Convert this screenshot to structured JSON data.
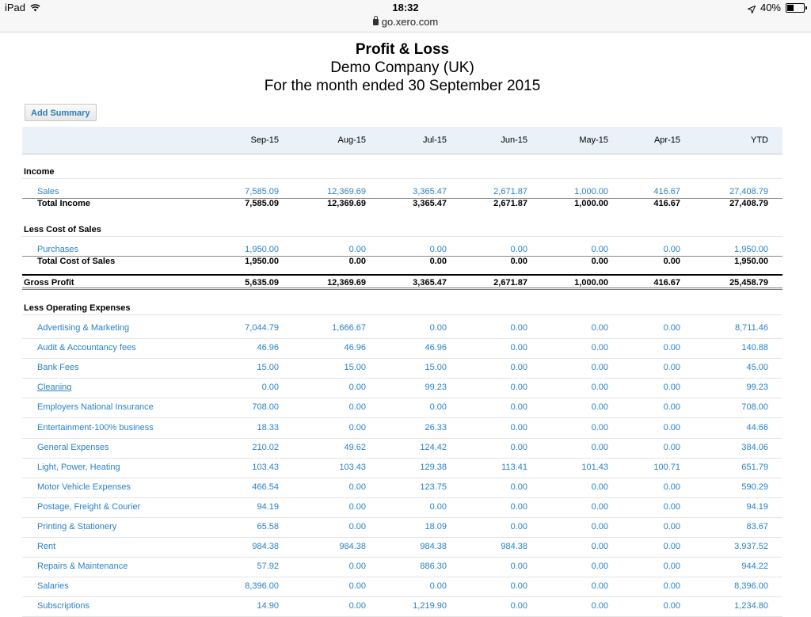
{
  "status_bar": {
    "device": "iPad",
    "time": "18:32",
    "url": "go.xero.com",
    "battery": "40%",
    "battery_level": 0.4
  },
  "report": {
    "title": "Profit & Loss",
    "company": "Demo Company (UK)",
    "period": "For the month ended 30 September 2015",
    "add_summary_label": "Add Summary"
  },
  "columns": [
    "Sep-15",
    "Aug-15",
    "Jul-15",
    "Jun-15",
    "May-15",
    "Apr-15",
    "YTD"
  ],
  "income": {
    "heading": "Income",
    "rows": [
      {
        "label": "Sales",
        "values": [
          "7,585.09",
          "12,369.69",
          "3,365.47",
          "2,671.87",
          "1,000.00",
          "416.67",
          "27,408.79"
        ]
      }
    ],
    "total": {
      "label": "Total Income",
      "values": [
        "7,585.09",
        "12,369.69",
        "3,365.47",
        "2,671.87",
        "1,000.00",
        "416.67",
        "27,408.79"
      ]
    }
  },
  "cost_of_sales": {
    "heading": "Less Cost of Sales",
    "rows": [
      {
        "label": "Purchases",
        "values": [
          "1,950.00",
          "0.00",
          "0.00",
          "0.00",
          "0.00",
          "0.00",
          "1,950.00"
        ]
      }
    ],
    "total": {
      "label": "Total Cost of Sales",
      "values": [
        "1,950.00",
        "0.00",
        "0.00",
        "0.00",
        "0.00",
        "0.00",
        "1,950.00"
      ]
    }
  },
  "gross_profit": {
    "label": "Gross Profit",
    "values": [
      "5,635.09",
      "12,369.69",
      "3,365.47",
      "2,671.87",
      "1,000.00",
      "416.67",
      "25,458.79"
    ]
  },
  "operating_expenses": {
    "heading": "Less Operating Expenses",
    "rows": [
      {
        "label": "Advertising & Marketing",
        "values": [
          "7,044.79",
          "1,666.67",
          "0.00",
          "0.00",
          "0.00",
          "0.00",
          "8,711.46"
        ]
      },
      {
        "label": "Audit & Accountancy fees",
        "values": [
          "46.96",
          "46.96",
          "46.96",
          "0.00",
          "0.00",
          "0.00",
          "140.88"
        ]
      },
      {
        "label": "Bank Fees",
        "values": [
          "15.00",
          "15.00",
          "15.00",
          "0.00",
          "0.00",
          "0.00",
          "45.00"
        ]
      },
      {
        "label": "Cleaning",
        "values": [
          "0.00",
          "0.00",
          "99.23",
          "0.00",
          "0.00",
          "0.00",
          "99.23"
        ],
        "underline": true
      },
      {
        "label": "Employers National Insurance",
        "values": [
          "708.00",
          "0.00",
          "0.00",
          "0.00",
          "0.00",
          "0.00",
          "708.00"
        ]
      },
      {
        "label": "Entertainment-100% business",
        "values": [
          "18.33",
          "0.00",
          "26.33",
          "0.00",
          "0.00",
          "0.00",
          "44.66"
        ]
      },
      {
        "label": "General Expenses",
        "values": [
          "210.02",
          "49.62",
          "124.42",
          "0.00",
          "0.00",
          "0.00",
          "384.06"
        ]
      },
      {
        "label": "Light, Power, Heating",
        "values": [
          "103.43",
          "103.43",
          "129.38",
          "113.41",
          "101.43",
          "100.71",
          "651.79"
        ]
      },
      {
        "label": "Motor Vehicle Expenses",
        "values": [
          "466.54",
          "0.00",
          "123.75",
          "0.00",
          "0.00",
          "0.00",
          "590.29"
        ]
      },
      {
        "label": "Postage, Freight & Courier",
        "values": [
          "94.19",
          "0.00",
          "0.00",
          "0.00",
          "0.00",
          "0.00",
          "94.19"
        ]
      },
      {
        "label": "Printing & Stationery",
        "values": [
          "65.58",
          "0.00",
          "18.09",
          "0.00",
          "0.00",
          "0.00",
          "83.67"
        ]
      },
      {
        "label": "Rent",
        "values": [
          "984.38",
          "984.38",
          "984.38",
          "984.38",
          "0.00",
          "0.00",
          "3,937.52"
        ]
      },
      {
        "label": "Repairs & Maintenance",
        "values": [
          "57.92",
          "0.00",
          "886.30",
          "0.00",
          "0.00",
          "0.00",
          "944.22"
        ]
      },
      {
        "label": "Salaries",
        "values": [
          "8,396.00",
          "0.00",
          "0.00",
          "0.00",
          "0.00",
          "0.00",
          "8,396.00"
        ]
      },
      {
        "label": "Subscriptions",
        "values": [
          "14.90",
          "0.00",
          "1,219.90",
          "0.00",
          "0.00",
          "0.00",
          "1,234.80"
        ]
      }
    ]
  }
}
